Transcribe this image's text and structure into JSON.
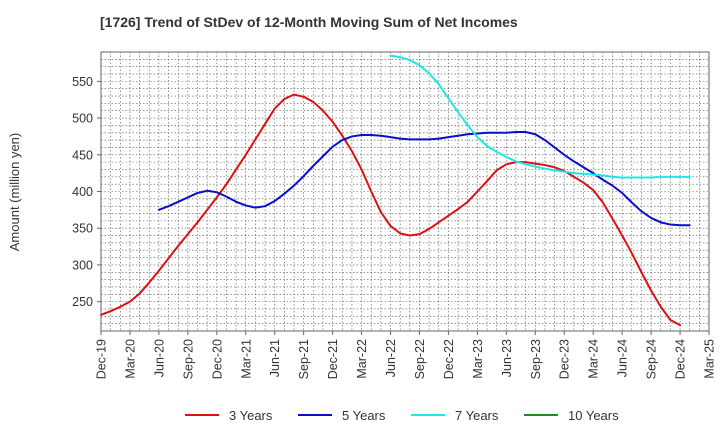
{
  "chart_data": {
    "type": "line",
    "title": "[1726]  Trend of StDev of 12-Month Moving Sum of Net Incomes",
    "xlabel": "",
    "ylabel": "Amount (million yen)",
    "x_tick_labels": [
      "Dec-19",
      "Mar-20",
      "Jun-20",
      "Sep-20",
      "Dec-20",
      "Mar-21",
      "Jun-21",
      "Sep-21",
      "Dec-21",
      "Mar-22",
      "Jun-22",
      "Sep-22",
      "Dec-22",
      "Mar-23",
      "Jun-23",
      "Sep-23",
      "Dec-23",
      "Mar-24",
      "Jun-24",
      "Sep-24",
      "Dec-24",
      "Mar-25"
    ],
    "y_ticks": [
      250,
      300,
      350,
      400,
      450,
      500,
      550
    ],
    "ylim": [
      210,
      590
    ],
    "grid": true,
    "legend_position": "bottom",
    "series": [
      {
        "name": "3 Years",
        "color": "#dd1111",
        "start_index": 0,
        "values": [
          232,
          237,
          243,
          250,
          261,
          276,
          292,
          309,
          326,
          342,
          358,
          375,
          392,
          410,
          430,
          450,
          471,
          492,
          513,
          526,
          532,
          529,
          522,
          510,
          495,
          476,
          455,
          430,
          400,
          372,
          353,
          343,
          340,
          342,
          349,
          358,
          367,
          376,
          386,
          400,
          414,
          429,
          437,
          440,
          440,
          438,
          436,
          433,
          428,
          420,
          412,
          402,
          385,
          363,
          340,
          316,
          290,
          265,
          243,
          225,
          218
        ]
      },
      {
        "name": "5 Years",
        "color": "#0a10c8",
        "start_index": 6,
        "values": [
          375,
          380,
          386,
          392,
          398,
          401,
          399,
          393,
          386,
          381,
          378,
          380,
          387,
          397,
          408,
          421,
          435,
          448,
          461,
          470,
          475,
          477,
          477,
          476,
          474,
          472,
          471,
          471,
          471,
          472,
          474,
          476,
          478,
          479,
          480,
          480,
          480,
          481,
          481,
          478,
          470,
          460,
          450,
          441,
          433,
          425,
          416,
          408,
          398,
          385,
          373,
          364,
          358,
          355,
          354,
          354
        ]
      },
      {
        "name": "7 Years",
        "color": "#1de8e8",
        "start_index": 30,
        "values": [
          585,
          583,
          579,
          572,
          561,
          546,
          527,
          508,
          490,
          474,
          462,
          454,
          447,
          441,
          437,
          434,
          431,
          429,
          427,
          425,
          424,
          423,
          422,
          420,
          419,
          419,
          419,
          419,
          420,
          420,
          420,
          420
        ]
      },
      {
        "name": "10 Years",
        "color": "#228b22",
        "start_index": 0,
        "values": []
      }
    ]
  }
}
